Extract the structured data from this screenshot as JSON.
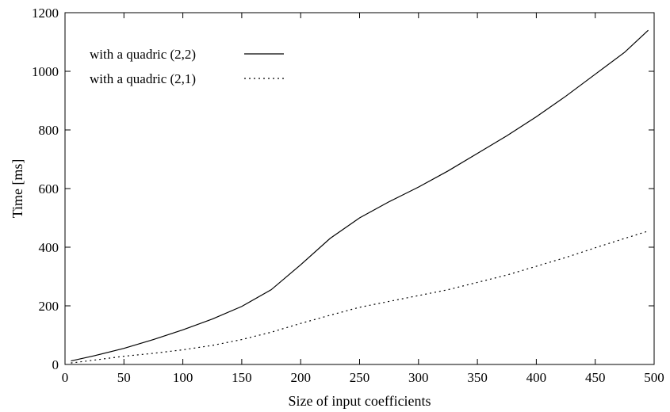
{
  "chart_data": {
    "type": "line",
    "title": "",
    "xlabel": "Size of input coefficients",
    "ylabel": "Time [ms]",
    "xlim": [
      0,
      500
    ],
    "ylim": [
      0,
      1200
    ],
    "xticks": [
      0,
      50,
      100,
      150,
      200,
      250,
      300,
      350,
      400,
      450,
      500
    ],
    "yticks": [
      0,
      200,
      400,
      600,
      800,
      1000,
      1200
    ],
    "grid": false,
    "legend_position": "top-left",
    "series": [
      {
        "name": "with a quadric (2,2)",
        "style": "solid",
        "color": "#000000",
        "x": [
          5,
          25,
          50,
          75,
          100,
          125,
          150,
          175,
          200,
          225,
          250,
          275,
          300,
          325,
          350,
          375,
          400,
          425,
          450,
          475,
          495
        ],
        "y": [
          12,
          30,
          55,
          85,
          118,
          155,
          198,
          255,
          340,
          430,
          500,
          555,
          605,
          660,
          720,
          780,
          845,
          915,
          990,
          1065,
          1140
        ]
      },
      {
        "name": "with a quadric (2,1)",
        "style": "dotted",
        "color": "#000000",
        "x": [
          5,
          25,
          50,
          75,
          100,
          125,
          150,
          175,
          200,
          225,
          250,
          275,
          300,
          325,
          350,
          375,
          400,
          425,
          450,
          475,
          495
        ],
        "y": [
          5,
          15,
          28,
          38,
          50,
          65,
          85,
          110,
          140,
          168,
          195,
          215,
          235,
          255,
          280,
          305,
          335,
          365,
          398,
          430,
          455
        ]
      }
    ]
  }
}
